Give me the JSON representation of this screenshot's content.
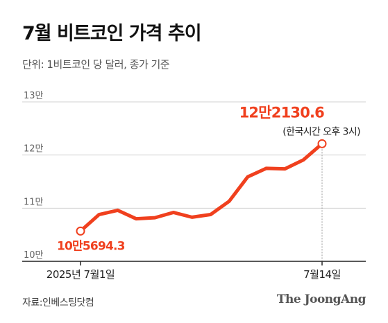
{
  "header": {
    "title": "7월 비트코인 가격 추이",
    "unit": "단위: 1비트코인 당 달러, 종가 기준"
  },
  "footer": {
    "source": "자료:인베스팅닷컴",
    "brand": "The JoongAng"
  },
  "colors": {
    "line": "#f0401e",
    "grid": "#d0d0d0",
    "axis": "#222222",
    "end_label": "#f0401e"
  },
  "chart_data": {
    "type": "line",
    "title": "7월 비트코인 가격 추이",
    "xlabel": "",
    "ylabel": "",
    "ylim": [
      100000,
      130000
    ],
    "y_ticks": [
      {
        "value": 130000,
        "label": "13만"
      },
      {
        "value": 120000,
        "label": "12만"
      },
      {
        "value": 110000,
        "label": "11만"
      },
      {
        "value": 100000,
        "label": "10만"
      }
    ],
    "x_tick_labels": [
      {
        "index": 0,
        "label": "2025년 7월1일"
      },
      {
        "index": 13,
        "label": "7월14일"
      }
    ],
    "grid": true,
    "series": [
      {
        "values": [
          105694.3,
          108800,
          109600,
          108000,
          108200,
          109200,
          108300,
          108800,
          111300,
          115900,
          117500,
          117400,
          119100,
          122130.6
        ]
      }
    ],
    "annotations": {
      "start": {
        "index": 0,
        "label": "10만5694.3"
      },
      "end": {
        "index": 13,
        "label": "12만2130.6",
        "note": "(한국시간 오후 3시)"
      }
    }
  }
}
